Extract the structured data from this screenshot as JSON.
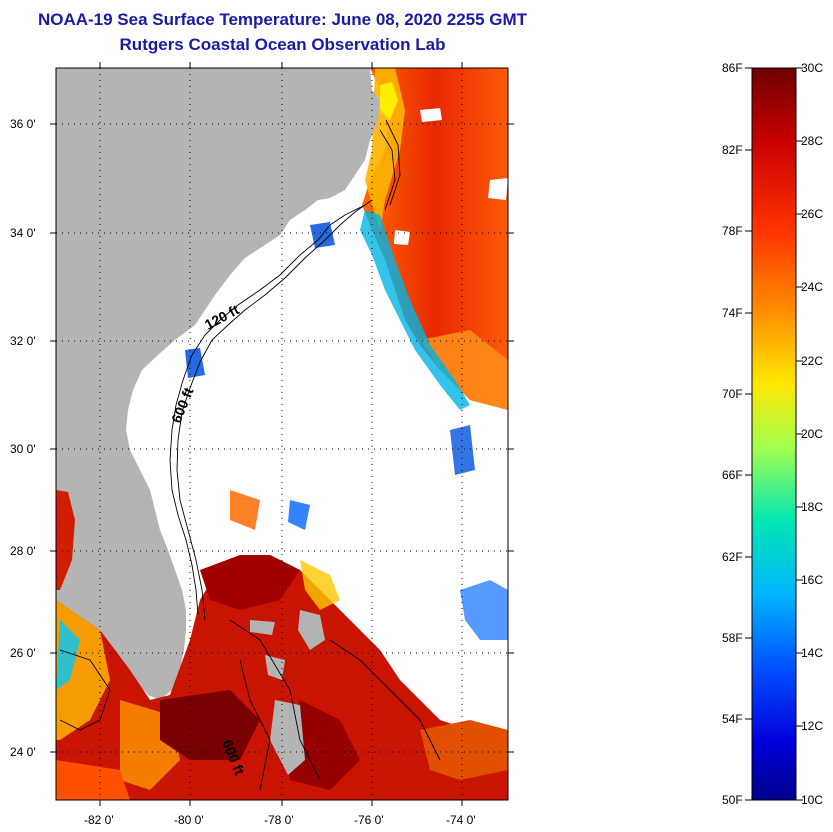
{
  "title": {
    "line1": "NOAA-19 Sea Surface Temperature:  June 08, 2020 2255 GMT",
    "line2": "Rutgers Coastal Ocean Observation Lab"
  },
  "map": {
    "lat_labels": [
      "36 0'",
      "34 0'",
      "32 0'",
      "30 0'",
      "28 0'",
      "26 0'",
      "24 0'"
    ],
    "lon_labels": [
      "-82 0'",
      "-80 0'",
      "-78 0'",
      "-76 0'",
      "-74 0'"
    ],
    "contour_labels": [
      "120 ft",
      "600 ft",
      "600 ft"
    ],
    "land_color": "#b4b4b4",
    "water_no_data_color": "#ffffff"
  },
  "colorbar": {
    "fahrenheit": [
      "86F",
      "82F",
      "78F",
      "74F",
      "70F",
      "66F",
      "62F",
      "58F",
      "54F",
      "50F"
    ],
    "celsius": [
      "30C",
      "28C",
      "26C",
      "24C",
      "22C",
      "20C",
      "18C",
      "16C",
      "14C",
      "12C",
      "10C"
    ],
    "colors": [
      "#7a0000",
      "#d21e00",
      "#ff6a00",
      "#ffd200",
      "#8cff6e",
      "#00d2ff",
      "#0050ff",
      "#0000aa"
    ]
  }
}
